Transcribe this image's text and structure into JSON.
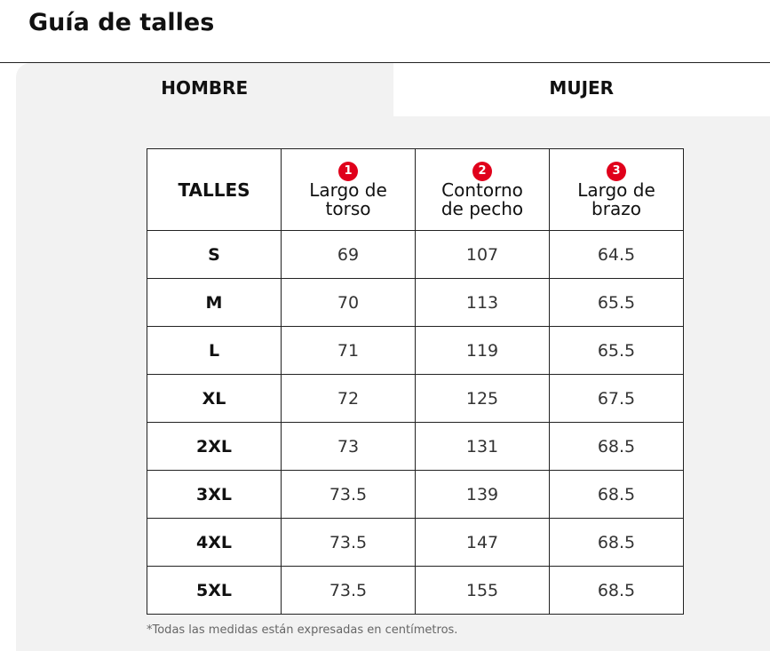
{
  "header": {
    "title": "Guía de talles"
  },
  "tabs": [
    "HOMBRE",
    "MUJER"
  ],
  "table": {
    "columns": [
      {
        "label": "TALLES"
      },
      {
        "badge": "1",
        "label": "Largo de torso"
      },
      {
        "badge": "2",
        "label": "Contorno de pecho"
      },
      {
        "badge": "3",
        "label": "Largo de brazo"
      }
    ],
    "rows": [
      [
        "S",
        "69",
        "107",
        "64.5"
      ],
      [
        "M",
        "70",
        "113",
        "65.5"
      ],
      [
        "L",
        "71",
        "119",
        "65.5"
      ],
      [
        "XL",
        "72",
        "125",
        "67.5"
      ],
      [
        "2XL",
        "73",
        "131",
        "68.5"
      ],
      [
        "3XL",
        "73.5",
        "139",
        "68.5"
      ],
      [
        "4XL",
        "73.5",
        "147",
        "68.5"
      ],
      [
        "5XL",
        "73.5",
        "155",
        "68.5"
      ]
    ]
  },
  "note": "*Todas las medidas están expresadas en centímetros."
}
